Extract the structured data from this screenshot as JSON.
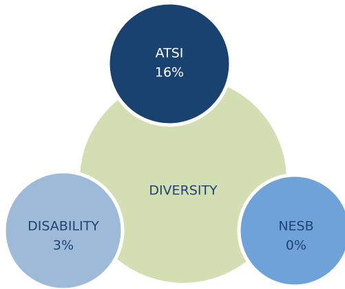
{
  "center": {
    "label": "DIVERSITY"
  },
  "nodes": [
    {
      "label": "ATSI",
      "value": "16%"
    },
    {
      "label": "DISABILITY",
      "value": "3%"
    },
    {
      "label": "NESB",
      "value": "0%"
    }
  ]
}
